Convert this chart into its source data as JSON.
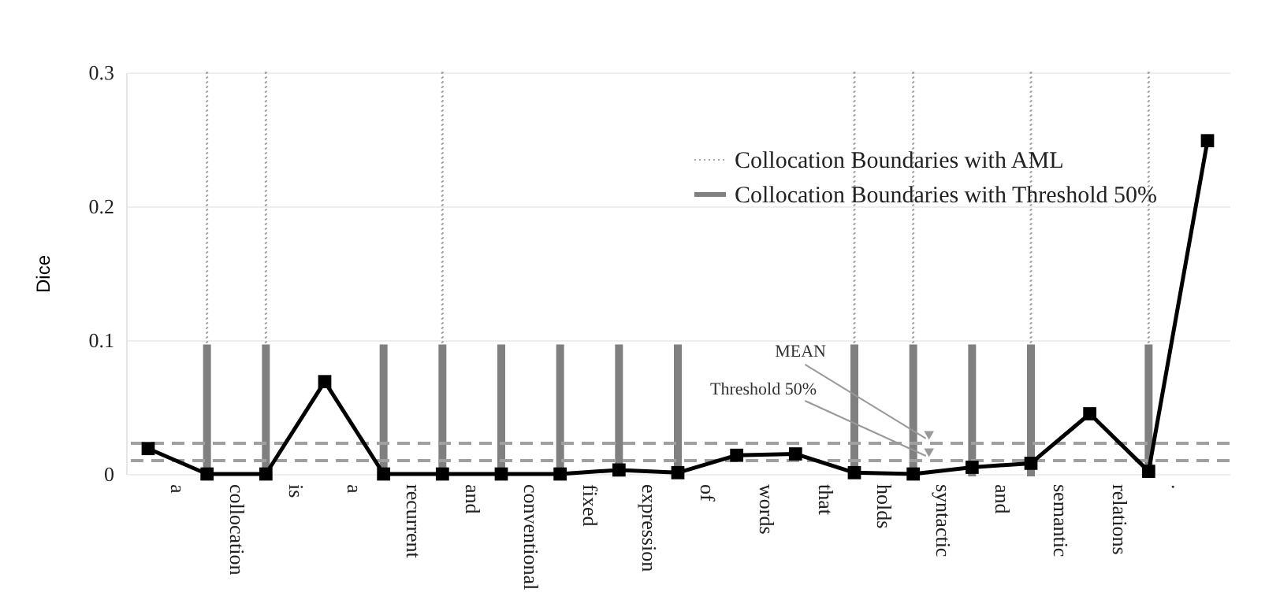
{
  "chart_data": {
    "type": "line",
    "ylabel": "Dice",
    "categories": [
      null,
      "a",
      null,
      "collocation",
      null,
      "is",
      null,
      "a",
      null,
      "recurrent",
      null,
      "and",
      null,
      "conventional",
      null,
      "fixed",
      null,
      "expression",
      null,
      "of",
      null,
      "words",
      null,
      "that",
      null,
      "holds",
      null,
      "syntactic",
      null,
      "and",
      null,
      "semantic",
      null,
      "relations",
      null,
      ".",
      null
    ],
    "series": [
      {
        "color": "#000000",
        "values": [
          0.019,
          null,
          0,
          null,
          0,
          null,
          0.069,
          null,
          0,
          null,
          0,
          null,
          0,
          null,
          0,
          null,
          0.003,
          null,
          0.001,
          null,
          0.014,
          null,
          0.015,
          null,
          0.001,
          null,
          0,
          null,
          0.005,
          null,
          0.008,
          null,
          0.045,
          null,
          0.002,
          null,
          0.249
        ]
      },
      {
        "type": "bar",
        "name": "Collocation Boundaries with AML",
        "color": "#a8a8a8",
        "line_style": "dotted",
        "values": [
          null,
          null,
          0.3,
          null,
          0.3,
          null,
          null,
          null,
          null,
          null,
          0.3,
          null,
          null,
          null,
          null,
          null,
          null,
          null,
          null,
          null,
          null,
          null,
          null,
          null,
          0.3,
          null,
          0.3,
          null,
          null,
          null,
          0.3,
          null,
          null,
          null,
          0.3,
          null,
          null
        ]
      },
      {
        "type": "bar",
        "name": "Collocation Boundaries with Threshold 50%",
        "color": "#808080",
        "line_style": "solid",
        "values": [
          null,
          null,
          0.095,
          null,
          0.095,
          null,
          null,
          null,
          0.095,
          null,
          0.095,
          null,
          0.095,
          null,
          0.095,
          null,
          0.095,
          null,
          0.095,
          null,
          null,
          null,
          null,
          null,
          0.095,
          null,
          0.095,
          null,
          0.095,
          null,
          0.095,
          null,
          null,
          null,
          0.095,
          null,
          null
        ]
      }
    ],
    "ref_lines": [
      {
        "axis": "y",
        "value": 0.023,
        "label": "MEAN",
        "color": "#a0a0a0",
        "line_style": "dashed"
      },
      {
        "axis": "y",
        "value": 0.01,
        "label": "Threshold 50%",
        "color": "#a0a0a0",
        "line_style": "dashed"
      }
    ],
    "ylim": [
      0,
      0.3
    ],
    "yticks": [
      0,
      0.1,
      0.2,
      0.3
    ],
    "grid": "y",
    "legend": "top right",
    "marker": "square"
  }
}
